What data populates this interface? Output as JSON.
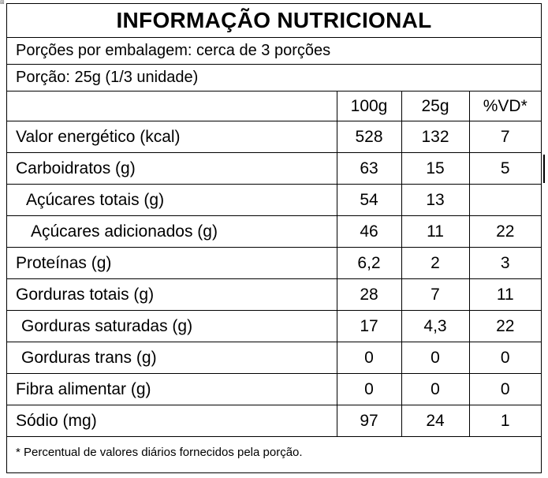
{
  "title": "INFORMAÇÃO NUTRICIONAL",
  "servings_per_package": "Porções por embalagem:  cerca de 3 porções",
  "serving_size": "Porção: 25g (1/3 unidade)",
  "columns": [
    "100g",
    "25g",
    "%VD*"
  ],
  "rows": [
    {
      "label": "Valor energético (kcal)",
      "v100": "528",
      "v25": "132",
      "vd": "7"
    },
    {
      "label": "Carboidratos  (g)",
      "v100": "63",
      "v25": "15",
      "vd": "5"
    },
    {
      "label": "Açúcares totais (g)",
      "v100": "54",
      "v25": "13",
      "vd": ""
    },
    {
      "label": "Açúcares adicionados  (g)",
      "v100": "46",
      "v25": "11",
      "vd": "22"
    },
    {
      "label": "Proteínas (g)",
      "v100": "6,2",
      "v25": "2",
      "vd": "3"
    },
    {
      "label": "Gorduras totais (g)",
      "v100": "28",
      "v25": "7",
      "vd": "11"
    },
    {
      "label": "Gorduras saturadas  (g)",
      "v100": "17",
      "v25": "4,3",
      "vd": "22"
    },
    {
      "label": "Gorduras trans (g)",
      "v100": "0",
      "v25": "0",
      "vd": "0"
    },
    {
      "label": "Fibra alimentar  (g)",
      "v100": "0",
      "v25": "0",
      "vd": "0"
    },
    {
      "label": "Sódio (mg)",
      "v100": "97",
      "v25": "24",
      "vd": "1"
    }
  ],
  "footnote": "* Percentual de valores diários fornecidos pela porção."
}
